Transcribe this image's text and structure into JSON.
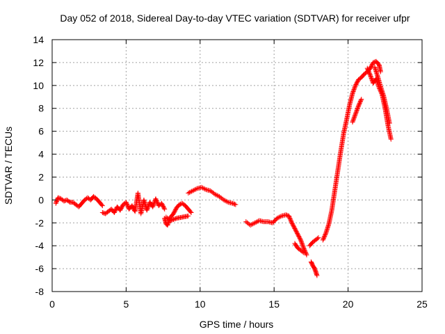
{
  "chart_data": {
    "type": "scatter",
    "title": "Day 052 of 2018, Sidereal Day-to-day VTEC variation (SDTVAR) for receiver ufpr",
    "xlabel": "GPS time / hours",
    "ylabel": "SDTVAR / TECUs",
    "xlim": [
      0,
      25
    ],
    "ylim": [
      -8,
      14
    ],
    "xticks": [
      0,
      5,
      10,
      15,
      20,
      25
    ],
    "yticks": [
      -8,
      -6,
      -4,
      -2,
      0,
      2,
      4,
      6,
      8,
      10,
      12,
      14
    ],
    "grid": true,
    "legend": "none",
    "marker": "+",
    "series": [
      {
        "name": "SDTVAR",
        "color": "#ff0000",
        "segments": [
          {
            "x": [
              0.25,
              0.4,
              0.6,
              0.8,
              1.0,
              1.2,
              1.4,
              1.6,
              1.8,
              2.0,
              2.2,
              2.4,
              2.6,
              2.8,
              3.0,
              3.2,
              3.4
            ],
            "y": [
              -0.3,
              0.2,
              0.1,
              -0.1,
              0.0,
              -0.2,
              -0.2,
              -0.4,
              -0.6,
              -0.3,
              0.0,
              0.2,
              0.0,
              0.3,
              0.1,
              -0.2,
              -0.5
            ]
          },
          {
            "x": [
              3.4,
              3.6,
              3.8,
              4.0,
              4.2,
              4.4,
              4.6,
              4.8,
              5.0,
              5.2,
              5.4,
              5.6,
              5.8,
              6.0,
              6.2,
              6.4,
              6.6,
              6.8,
              7.0,
              7.2,
              7.4,
              7.6
            ],
            "y": [
              -1.1,
              -1.2,
              -1.0,
              -0.8,
              -1.1,
              -0.6,
              -0.9,
              -0.4,
              -0.2,
              -0.8,
              -0.5,
              -1.0,
              0.6,
              -1.2,
              0.0,
              -0.9,
              -0.2,
              -0.6,
              0.1,
              -0.5,
              -0.3,
              -0.8
            ]
          },
          {
            "x": [
              7.6,
              7.7,
              7.8,
              8.0,
              8.2,
              8.4,
              8.6,
              8.8,
              9.0,
              9.2,
              9.4
            ],
            "y": [
              -1.6,
              -2.1,
              -2.2,
              -1.5,
              -1.2,
              -0.7,
              -0.4,
              -0.3,
              -0.5,
              -0.8,
              -1.1
            ]
          },
          {
            "x": [
              7.7,
              8.0,
              8.4,
              8.8,
              9.2
            ],
            "y": [
              -1.5,
              -1.8,
              -1.6,
              -1.5,
              -1.4
            ]
          },
          {
            "x": [
              9.2,
              9.5,
              9.8,
              10.1,
              10.4,
              10.7,
              11.0,
              11.3,
              11.6,
              11.9,
              12.2,
              12.4
            ],
            "y": [
              0.6,
              0.8,
              1.0,
              1.1,
              0.9,
              0.8,
              0.5,
              0.3,
              0.0,
              -0.2,
              -0.3,
              -0.4
            ]
          },
          {
            "x": [
              13.1,
              13.4,
              13.7,
              14.0,
              14.3,
              14.6,
              14.9,
              15.2,
              15.5,
              15.8,
              16.0,
              16.2,
              16.4,
              16.6,
              16.8,
              17.0,
              17.2
            ],
            "y": [
              -1.9,
              -2.2,
              -2.0,
              -1.8,
              -1.9,
              -1.9,
              -2.0,
              -1.6,
              -1.4,
              -1.3,
              -1.4,
              -2.0,
              -2.5,
              -3.0,
              -3.5,
              -4.2,
              -4.8
            ]
          },
          {
            "x": [
              16.4,
              16.6,
              16.8,
              17.0
            ],
            "y": [
              -3.8,
              -4.2,
              -4.4,
              -4.6
            ]
          },
          {
            "x": [
              17.5,
              17.6,
              17.7,
              17.8,
              17.9
            ],
            "y": [
              -5.4,
              -5.7,
              -5.9,
              -6.2,
              -6.6
            ]
          },
          {
            "x": [
              17.4,
              17.6,
              17.8,
              18.0
            ],
            "y": [
              -4.0,
              -3.7,
              -3.5,
              -3.3
            ]
          },
          {
            "x": [
              18.3,
              18.5,
              18.7,
              18.9,
              19.1,
              19.3,
              19.5,
              19.7,
              19.9,
              20.1,
              20.3,
              20.5,
              20.7,
              20.9,
              21.1,
              21.3,
              21.5,
              21.7,
              21.9,
              22.1,
              22.2
            ],
            "y": [
              -3.5,
              -2.9,
              -2.1,
              -0.9,
              0.8,
              2.5,
              4.2,
              5.8,
              7.0,
              8.3,
              9.3,
              10.0,
              10.5,
              10.7,
              11.0,
              11.2,
              11.5,
              12.0,
              12.1,
              11.8,
              11.2
            ]
          },
          {
            "x": [
              20.3,
              20.5,
              20.7,
              20.9
            ],
            "y": [
              6.8,
              7.5,
              8.2,
              8.8
            ]
          },
          {
            "x": [
              21.3,
              21.5,
              21.7,
              21.9,
              22.1,
              22.3,
              22.5,
              22.7,
              22.9
            ],
            "y": [
              11.5,
              10.9,
              10.2,
              10.6,
              9.8,
              9.2,
              8.0,
              6.5,
              5.3
            ]
          },
          {
            "x": [
              21.8,
              22.0,
              22.2,
              22.4,
              22.6,
              22.8
            ],
            "y": [
              11.6,
              10.8,
              9.9,
              9.1,
              8.0,
              6.7
            ]
          }
        ]
      }
    ]
  }
}
